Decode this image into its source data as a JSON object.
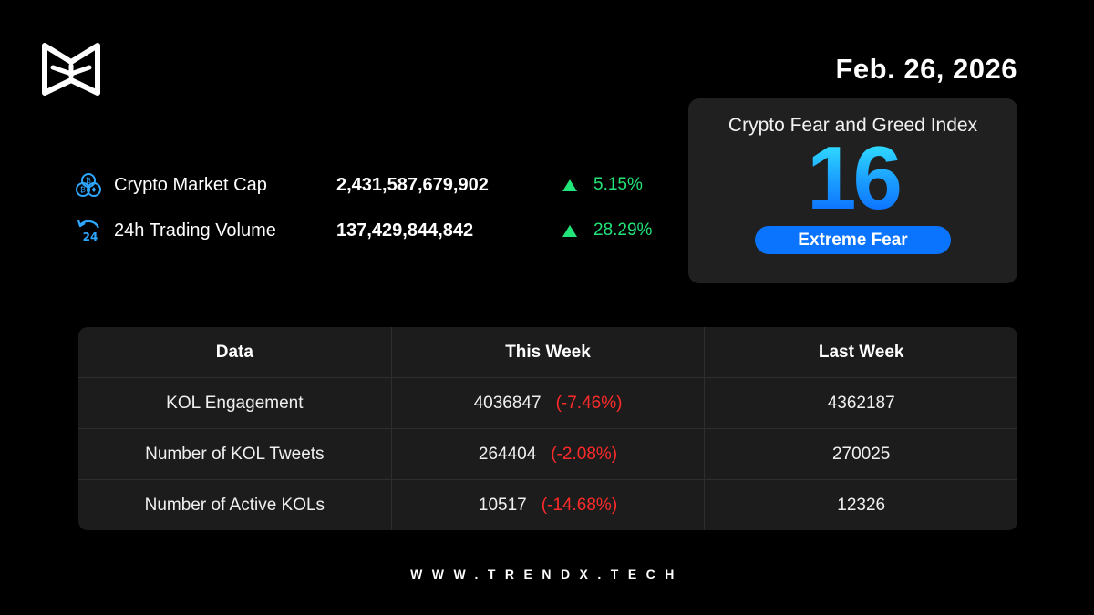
{
  "date": "Feb. 26, 2026",
  "metrics": [
    {
      "icon": "coins-icon",
      "label": "Crypto Market Cap",
      "value": "2,431,587,679,902",
      "change": "5.15%",
      "direction": "up"
    },
    {
      "icon": "24h-volume-icon",
      "label": "24h Trading Volume",
      "value": "137,429,844,842",
      "change": "28.29%",
      "direction": "up"
    }
  ],
  "fear_greed": {
    "title": "Crypto Fear and Greed Index",
    "value": "16",
    "label": "Extreme Fear",
    "badge_color": "#0A74FF"
  },
  "table": {
    "headers": [
      "Data",
      "This Week",
      "Last Week"
    ],
    "rows": [
      {
        "name": "KOL Engagement",
        "this_week": "4036847",
        "change": "(-7.46%)",
        "last_week": "4362187"
      },
      {
        "name": "Number of KOL Tweets",
        "this_week": "264404",
        "change": "(-2.08%)",
        "last_week": "270025"
      },
      {
        "name": "Number of Active KOLs",
        "this_week": "10517",
        "change": "(-14.68%)",
        "last_week": "12326"
      }
    ]
  },
  "footer": "WWW.TRENDX.TECH",
  "colors": {
    "positive": "#22E57A",
    "negative": "#FF2A2A",
    "accent": "#1A9CFF"
  }
}
